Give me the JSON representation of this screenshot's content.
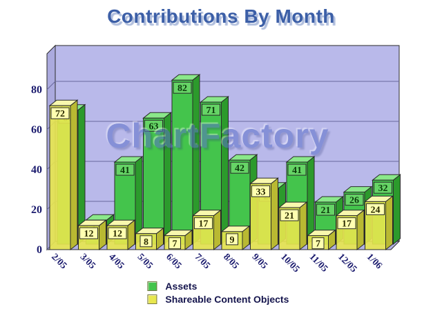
{
  "title": "Contributions By Month",
  "watermark": "ChartFactory",
  "chart_data": {
    "type": "bar",
    "projection": "3d",
    "title": "Contributions By Month",
    "categories": [
      "2/05",
      "3/05",
      "4/05",
      "5/05",
      "6/05",
      "7/05",
      "8/05",
      "9/05",
      "10/05",
      "11/05",
      "12/05",
      "1/06"
    ],
    "series": [
      {
        "name": "Assets",
        "values": [
          67,
          12,
          41,
          63,
          82,
          71,
          42,
          28,
          41,
          21,
          26,
          32
        ],
        "color": "#44c44c",
        "color_top": "#8ae88a",
        "color_side": "#2c9a2c",
        "label_bg": "#66d466",
        "label_text": "#0c3a0c"
      },
      {
        "name": "Shareable Content Objects",
        "values": [
          72,
          12,
          12,
          8,
          7,
          17,
          9,
          33,
          21,
          7,
          17,
          24
        ],
        "color": "#e8e74e",
        "color_top": "#f8f8ae",
        "color_side": "#b9b932",
        "label_bg": "#ffffb0",
        "label_text": "#2b2b00"
      }
    ],
    "yticks": [
      0,
      20,
      40,
      60,
      80
    ],
    "ylim": [
      0,
      100
    ],
    "grid": true,
    "legend_position": "bottom",
    "bar_value_labels": true
  },
  "colors": {
    "background": "#ffffff",
    "title": "#3c5fa7",
    "title_shadow": "#b0bedd",
    "watermark": "#5b6fc8",
    "wall": "#b9b9ea",
    "wall_side": "#abaade",
    "floor": "#b2b2e2",
    "grid_line": "#67679c",
    "outline": "#2a2a2a",
    "axis_text": "#1b1b6e",
    "legend_text": "#15154d"
  }
}
